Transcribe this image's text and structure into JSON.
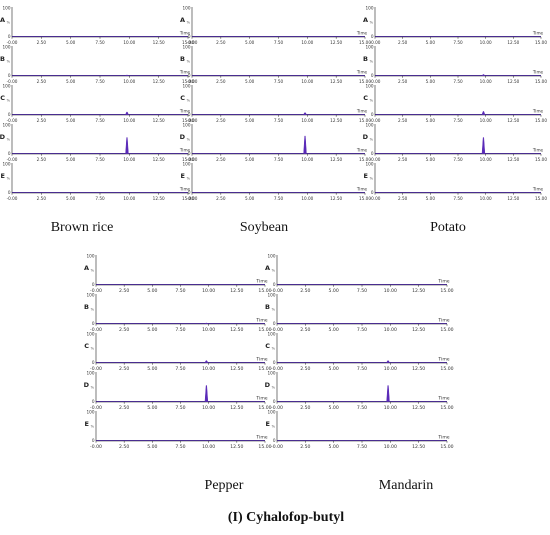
{
  "figure_caption": "(I) Cyhalofop-butyl",
  "colors": {
    "axis": "#222222",
    "baseline": "#3f1f8f",
    "peak": "#5a2ab8"
  },
  "chart_data": [
    {
      "type": "line",
      "panel": "Brown rice",
      "xlabel": "Time",
      "xlim": [
        0,
        15
      ],
      "ylim": [
        0,
        100
      ],
      "x_ticks": [
        "-0.00",
        "2.50",
        "5.00",
        "7.50",
        "10.00",
        "12.50",
        "15.00"
      ],
      "y_ticks": [
        "0",
        "100"
      ],
      "series": [
        {
          "name": "A",
          "peak_rt": 9.8,
          "peak_height": 0
        },
        {
          "name": "B",
          "peak_rt": 9.8,
          "peak_height": 3
        },
        {
          "name": "C",
          "peak_rt": 9.8,
          "peak_height": 10
        },
        {
          "name": "D",
          "peak_rt": 9.8,
          "peak_height": 55
        },
        {
          "name": "E",
          "peak_rt": 9.8,
          "peak_height": 0
        }
      ]
    },
    {
      "type": "line",
      "panel": "Soybean",
      "xlabel": "Time",
      "xlim": [
        0,
        15
      ],
      "ylim": [
        0,
        100
      ],
      "x_ticks": [
        "-0.00",
        "2.50",
        "5.00",
        "7.50",
        "10.00",
        "12.50",
        "15.00"
      ],
      "y_ticks": [
        "0",
        "100"
      ],
      "series": [
        {
          "name": "A",
          "peak_rt": 9.8,
          "peak_height": 0
        },
        {
          "name": "B",
          "peak_rt": 9.8,
          "peak_height": 2
        },
        {
          "name": "C",
          "peak_rt": 9.8,
          "peak_height": 8
        },
        {
          "name": "D",
          "peak_rt": 9.8,
          "peak_height": 60
        },
        {
          "name": "E",
          "peak_rt": 9.8,
          "peak_height": 0
        }
      ]
    },
    {
      "type": "line",
      "panel": "Potato",
      "xlabel": "Time",
      "xlim": [
        0,
        15
      ],
      "ylim": [
        0,
        100
      ],
      "x_ticks": [
        "-0.00",
        "2.50",
        "5.00",
        "7.50",
        "10.00",
        "12.50",
        "15.00"
      ],
      "y_ticks": [
        "0",
        "100"
      ],
      "series": [
        {
          "name": "A",
          "peak_rt": 9.8,
          "peak_height": 0
        },
        {
          "name": "B",
          "peak_rt": 9.8,
          "peak_height": 5
        },
        {
          "name": "C",
          "peak_rt": 9.8,
          "peak_height": 12
        },
        {
          "name": "D",
          "peak_rt": 9.8,
          "peak_height": 55
        },
        {
          "name": "E",
          "peak_rt": 9.8,
          "peak_height": 0
        }
      ]
    },
    {
      "type": "line",
      "panel": "Pepper",
      "xlabel": "Time",
      "xlim": [
        0,
        15
      ],
      "ylim": [
        0,
        100
      ],
      "x_ticks": [
        "-0.00",
        "2.50",
        "5.00",
        "7.50",
        "10.00",
        "12.50",
        "15.00"
      ],
      "y_ticks": [
        "0",
        "100"
      ],
      "series": [
        {
          "name": "A",
          "peak_rt": 9.8,
          "peak_height": 0
        },
        {
          "name": "B",
          "peak_rt": 9.8,
          "peak_height": 3
        },
        {
          "name": "C",
          "peak_rt": 9.8,
          "peak_height": 8
        },
        {
          "name": "D",
          "peak_rt": 9.8,
          "peak_height": 55
        },
        {
          "name": "E",
          "peak_rt": 9.8,
          "peak_height": 0
        }
      ]
    },
    {
      "type": "line",
      "panel": "Mandarin",
      "xlabel": "Time",
      "xlim": [
        0,
        15
      ],
      "ylim": [
        0,
        100
      ],
      "x_ticks": [
        "-0.00",
        "2.50",
        "5.00",
        "7.50",
        "10.00",
        "12.50",
        "15.00"
      ],
      "y_ticks": [
        "0",
        "100"
      ],
      "series": [
        {
          "name": "A",
          "peak_rt": 9.8,
          "peak_height": 0
        },
        {
          "name": "B",
          "peak_rt": 9.8,
          "peak_height": 2
        },
        {
          "name": "C",
          "peak_rt": 9.8,
          "peak_height": 8
        },
        {
          "name": "D",
          "peak_rt": 9.8,
          "peak_height": 55
        },
        {
          "name": "E",
          "peak_rt": 9.8,
          "peak_height": 0
        }
      ]
    }
  ]
}
